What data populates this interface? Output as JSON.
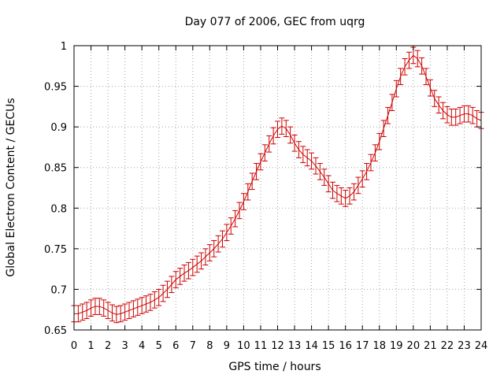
{
  "chart_data": {
    "type": "line",
    "title": "Day 077 of 2006, GEC from uqrg",
    "xlabel": "GPS time / hours",
    "ylabel": "Global Electron Content / GECUs",
    "xlim": [
      0,
      24
    ],
    "ylim": [
      0.65,
      1.0
    ],
    "grid": true,
    "x_ticks": [
      "0",
      "1",
      "2",
      "3",
      "4",
      "5",
      "6",
      "7",
      "8",
      "9",
      "10",
      "11",
      "12",
      "13",
      "14",
      "15",
      "16",
      "17",
      "18",
      "19",
      "20",
      "21",
      "22",
      "23",
      "24"
    ],
    "y_ticks": [
      "0.65",
      "0.7",
      "0.75",
      "0.8",
      "0.85",
      "0.9",
      "0.95",
      "1"
    ],
    "series": [
      {
        "name": "GEC",
        "color": "#cc0000",
        "error": 0.01,
        "x": [
          0,
          0.25,
          0.5,
          0.75,
          1,
          1.25,
          1.5,
          1.75,
          2,
          2.25,
          2.5,
          2.75,
          3,
          3.25,
          3.5,
          3.75,
          4,
          4.25,
          4.5,
          4.75,
          5,
          5.25,
          5.5,
          5.75,
          6,
          6.25,
          6.5,
          6.75,
          7,
          7.25,
          7.5,
          7.75,
          8,
          8.25,
          8.5,
          8.75,
          9,
          9.25,
          9.5,
          9.75,
          10,
          10.25,
          10.5,
          10.75,
          11,
          11.25,
          11.5,
          11.75,
          12,
          12.25,
          12.5,
          12.75,
          13,
          13.25,
          13.5,
          13.75,
          14,
          14.25,
          14.5,
          14.75,
          15,
          15.25,
          15.5,
          15.75,
          16,
          16.25,
          16.5,
          16.75,
          17,
          17.25,
          17.5,
          17.75,
          18,
          18.25,
          18.5,
          18.75,
          19,
          19.25,
          19.5,
          19.75,
          20,
          20.25,
          20.5,
          20.75,
          21,
          21.25,
          21.5,
          21.75,
          22,
          22.25,
          22.5,
          22.75,
          23,
          23.25,
          23.5,
          23.75,
          24
        ],
        "values": [
          0.67,
          0.67,
          0.672,
          0.674,
          0.677,
          0.679,
          0.679,
          0.677,
          0.674,
          0.671,
          0.669,
          0.67,
          0.672,
          0.674,
          0.676,
          0.678,
          0.68,
          0.682,
          0.684,
          0.687,
          0.69,
          0.695,
          0.7,
          0.706,
          0.712,
          0.716,
          0.72,
          0.723,
          0.727,
          0.731,
          0.735,
          0.74,
          0.745,
          0.75,
          0.756,
          0.762,
          0.77,
          0.778,
          0.787,
          0.797,
          0.808,
          0.82,
          0.833,
          0.845,
          0.857,
          0.868,
          0.879,
          0.889,
          0.897,
          0.901,
          0.898,
          0.89,
          0.88,
          0.872,
          0.866,
          0.862,
          0.858,
          0.852,
          0.845,
          0.838,
          0.83,
          0.822,
          0.818,
          0.815,
          0.812,
          0.815,
          0.82,
          0.828,
          0.836,
          0.845,
          0.856,
          0.868,
          0.882,
          0.898,
          0.914,
          0.93,
          0.947,
          0.962,
          0.974,
          0.982,
          0.988,
          0.984,
          0.975,
          0.962,
          0.948,
          0.935,
          0.927,
          0.92,
          0.915,
          0.912,
          0.912,
          0.914,
          0.916,
          0.916,
          0.914,
          0.91,
          0.908
        ]
      }
    ]
  }
}
